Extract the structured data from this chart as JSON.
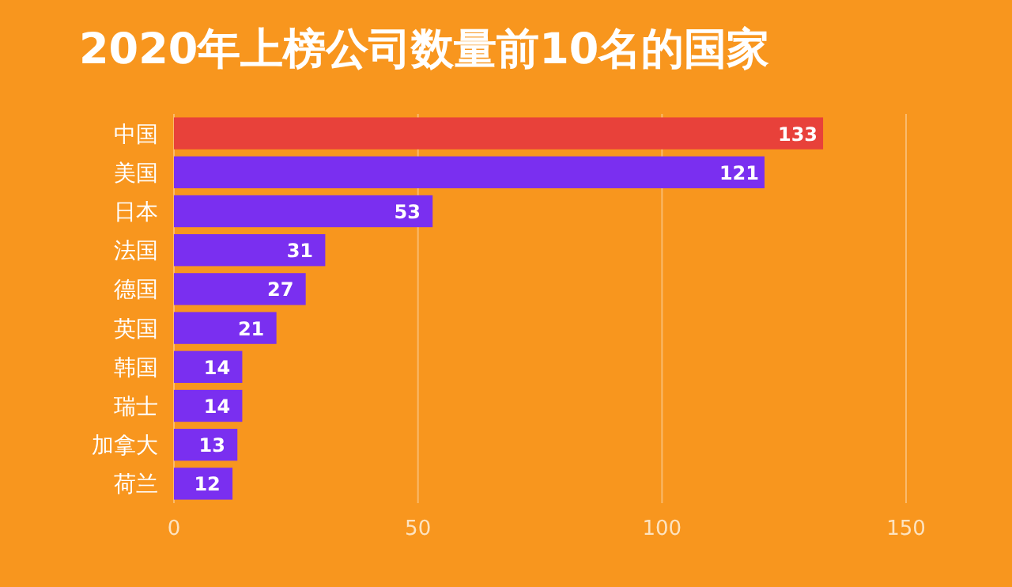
{
  "chart_data": {
    "type": "bar",
    "orientation": "horizontal",
    "title": "2020年上榜公司数量前10名的国家",
    "categories": [
      "中国",
      "美国",
      "日本",
      "法国",
      "德国",
      "英国",
      "韩国",
      "瑞士",
      "加拿大",
      "荷兰"
    ],
    "values": [
      133,
      121,
      53,
      31,
      27,
      21,
      14,
      14,
      13,
      12
    ],
    "colors": [
      "#e8413a",
      "#7a2ff0",
      "#7a2ff0",
      "#7a2ff0",
      "#7a2ff0",
      "#7a2ff0",
      "#7a2ff0",
      "#7a2ff0",
      "#7a2ff0",
      "#7a2ff0"
    ],
    "xlim": [
      0,
      150
    ],
    "xticks": [
      0,
      50,
      100,
      150
    ],
    "grid": "x",
    "data_labels": true
  }
}
